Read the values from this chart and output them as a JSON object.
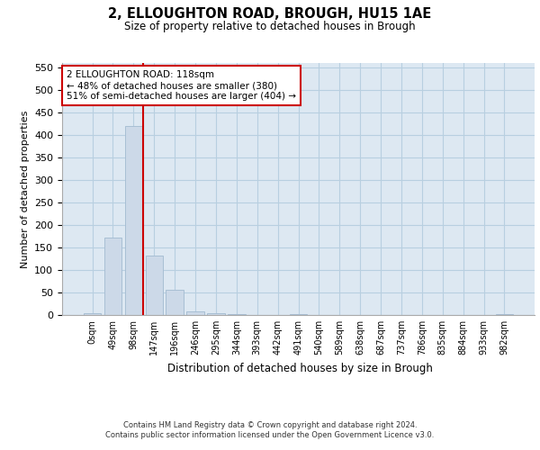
{
  "title": "2, ELLOUGHTON ROAD, BROUGH, HU15 1AE",
  "subtitle": "Size of property relative to detached houses in Brough",
  "xlabel": "Distribution of detached houses by size in Brough",
  "ylabel": "Number of detached properties",
  "bar_color": "#ccd9e8",
  "bar_edgecolor": "#a8bfd4",
  "grid_color": "#b8cfe0",
  "background_color": "#dde8f2",
  "categories": [
    "0sqm",
    "49sqm",
    "98sqm",
    "147sqm",
    "196sqm",
    "246sqm",
    "295sqm",
    "344sqm",
    "393sqm",
    "442sqm",
    "491sqm",
    "540sqm",
    "589sqm",
    "638sqm",
    "687sqm",
    "737sqm",
    "786sqm",
    "835sqm",
    "884sqm",
    "933sqm",
    "982sqm"
  ],
  "values": [
    5,
    172,
    420,
    132,
    57,
    8,
    5,
    2,
    0,
    0,
    3,
    0,
    0,
    0,
    0,
    0,
    0,
    0,
    0,
    0,
    3
  ],
  "ylim": [
    0,
    560
  ],
  "yticks": [
    0,
    50,
    100,
    150,
    200,
    250,
    300,
    350,
    400,
    450,
    500,
    550
  ],
  "property_line_bin": 2.45,
  "annotation_text": "2 ELLOUGHTON ROAD: 118sqm\n← 48% of detached houses are smaller (380)\n51% of semi-detached houses are larger (404) →",
  "annotation_box_color": "#ffffff",
  "annotation_box_edgecolor": "#cc0000",
  "vline_color": "#cc0000",
  "footer_line1": "Contains HM Land Registry data © Crown copyright and database right 2024.",
  "footer_line2": "Contains public sector information licensed under the Open Government Licence v3.0."
}
